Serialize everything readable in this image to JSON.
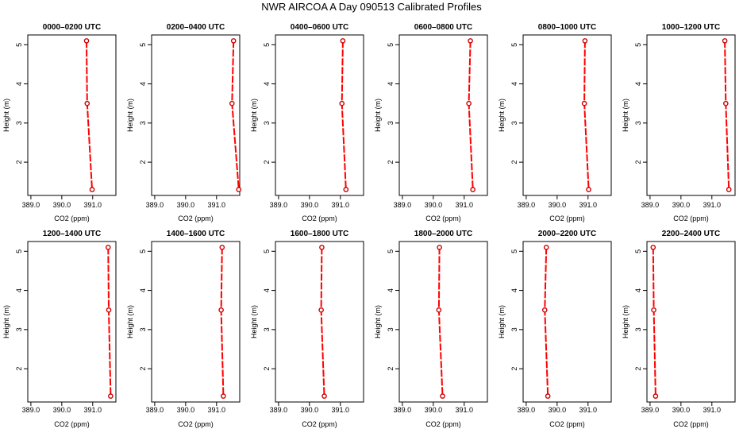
{
  "figure": {
    "title": "NWR AIRCOA A  Day 090513  Calibrated Profiles",
    "line_color": "#ff0000",
    "marker_color": "#cc0000"
  },
  "chart_data": [
    {
      "type": "line",
      "title": "0000–0200 UTC",
      "xlabel": "CO2 (ppm)",
      "ylabel": "Height (m)",
      "xlim": [
        388.9,
        391.75
      ],
      "ylim": [
        1.15,
        5.25
      ],
      "xticks": [
        "389.0",
        "390.0",
        "391.0"
      ],
      "yticks": [
        "2",
        "3",
        "4",
        "5"
      ],
      "x": [
        390.8,
        390.82,
        390.98
      ],
      "y": [
        5.1,
        3.5,
        1.3
      ]
    },
    {
      "type": "line",
      "title": "0200–0400 UTC",
      "xlabel": "CO2 (ppm)",
      "ylabel": "Height (m)",
      "xlim": [
        388.9,
        391.75
      ],
      "ylim": [
        1.15,
        5.25
      ],
      "xticks": [
        "389.0",
        "390.0",
        "391.0"
      ],
      "yticks": [
        "2",
        "3",
        "4",
        "5"
      ],
      "x": [
        391.55,
        391.5,
        391.72
      ],
      "y": [
        5.1,
        3.5,
        1.3
      ]
    },
    {
      "type": "line",
      "title": "0400–0600 UTC",
      "xlabel": "CO2 (ppm)",
      "ylabel": "Height (m)",
      "xlim": [
        388.9,
        391.75
      ],
      "ylim": [
        1.15,
        5.25
      ],
      "xticks": [
        "389.0",
        "390.0",
        "391.0"
      ],
      "yticks": [
        "2",
        "3",
        "4",
        "5"
      ],
      "x": [
        391.08,
        391.05,
        391.18
      ],
      "y": [
        5.1,
        3.5,
        1.3
      ]
    },
    {
      "type": "line",
      "title": "0600–0800 UTC",
      "xlabel": "CO2 (ppm)",
      "ylabel": "Height (m)",
      "xlim": [
        388.9,
        391.75
      ],
      "ylim": [
        1.15,
        5.25
      ],
      "xticks": [
        "389.0",
        "390.0",
        "391.0"
      ],
      "yticks": [
        "2",
        "3",
        "4",
        "5"
      ],
      "x": [
        391.2,
        391.15,
        391.28
      ],
      "y": [
        5.1,
        3.5,
        1.3
      ]
    },
    {
      "type": "line",
      "title": "0800–1000 UTC",
      "xlabel": "CO2 (ppm)",
      "ylabel": "Height (m)",
      "xlim": [
        388.9,
        391.75
      ],
      "ylim": [
        1.15,
        5.25
      ],
      "xticks": [
        "389.0",
        "390.0",
        "391.0"
      ],
      "yticks": [
        "2",
        "3",
        "4",
        "5"
      ],
      "x": [
        390.9,
        390.88,
        391.02
      ],
      "y": [
        5.1,
        3.5,
        1.3
      ]
    },
    {
      "type": "line",
      "title": "1000–1200 UTC",
      "xlabel": "CO2 (ppm)",
      "ylabel": "Height (m)",
      "xlim": [
        388.9,
        391.75
      ],
      "ylim": [
        1.15,
        5.25
      ],
      "xticks": [
        "389.0",
        "390.0",
        "391.0"
      ],
      "yticks": [
        "2",
        "3",
        "4",
        "5"
      ],
      "x": [
        391.42,
        391.45,
        391.55
      ],
      "y": [
        5.1,
        3.5,
        1.3
      ]
    },
    {
      "type": "line",
      "title": "1200–1400 UTC",
      "xlabel": "CO2 (ppm)",
      "ylabel": "Height (m)",
      "xlim": [
        388.9,
        391.75
      ],
      "ylim": [
        1.15,
        5.25
      ],
      "xticks": [
        "389.0",
        "390.0",
        "391.0"
      ],
      "yticks": [
        "2",
        "3",
        "4",
        "5"
      ],
      "x": [
        391.5,
        391.52,
        391.58
      ],
      "y": [
        5.1,
        3.5,
        1.3
      ]
    },
    {
      "type": "line",
      "title": "1400–1600 UTC",
      "xlabel": "CO2 (ppm)",
      "ylabel": "Height (m)",
      "xlim": [
        388.9,
        391.75
      ],
      "ylim": [
        1.15,
        5.25
      ],
      "xticks": [
        "389.0",
        "390.0",
        "391.0"
      ],
      "yticks": [
        "2",
        "3",
        "4",
        "5"
      ],
      "x": [
        391.18,
        391.15,
        391.22
      ],
      "y": [
        5.1,
        3.5,
        1.3
      ]
    },
    {
      "type": "line",
      "title": "1600–1800 UTC",
      "xlabel": "CO2 (ppm)",
      "ylabel": "Height (m)",
      "xlim": [
        388.9,
        391.75
      ],
      "ylim": [
        1.15,
        5.25
      ],
      "xticks": [
        "389.0",
        "390.0",
        "391.0"
      ],
      "yticks": [
        "2",
        "3",
        "4",
        "5"
      ],
      "x": [
        390.4,
        390.38,
        390.48
      ],
      "y": [
        5.1,
        3.5,
        1.3
      ]
    },
    {
      "type": "line",
      "title": "1800–2000 UTC",
      "xlabel": "CO2 (ppm)",
      "ylabel": "Height (m)",
      "xlim": [
        388.9,
        391.75
      ],
      "ylim": [
        1.15,
        5.25
      ],
      "xticks": [
        "389.0",
        "390.0",
        "391.0"
      ],
      "yticks": [
        "2",
        "3",
        "4",
        "5"
      ],
      "x": [
        390.2,
        390.18,
        390.3
      ],
      "y": [
        5.1,
        3.5,
        1.3
      ]
    },
    {
      "type": "line",
      "title": "2000–2200 UTC",
      "xlabel": "CO2 (ppm)",
      "ylabel": "Height (m)",
      "xlim": [
        388.9,
        391.75
      ],
      "ylim": [
        1.15,
        5.25
      ],
      "xticks": [
        "389.0",
        "390.0",
        "391.0"
      ],
      "yticks": [
        "2",
        "3",
        "4",
        "5"
      ],
      "x": [
        389.65,
        389.6,
        389.7
      ],
      "y": [
        5.1,
        3.5,
        1.3
      ]
    },
    {
      "type": "line",
      "title": "2200–2400 UTC",
      "xlabel": "CO2 (ppm)",
      "ylabel": "Height (m)",
      "xlim": [
        388.9,
        391.75
      ],
      "ylim": [
        1.15,
        5.25
      ],
      "xticks": [
        "389.0",
        "390.0",
        "391.0"
      ],
      "yticks": [
        "2",
        "3",
        "4",
        "5"
      ],
      "x": [
        389.1,
        389.12,
        389.18
      ],
      "y": [
        5.1,
        3.5,
        1.3
      ]
    }
  ]
}
